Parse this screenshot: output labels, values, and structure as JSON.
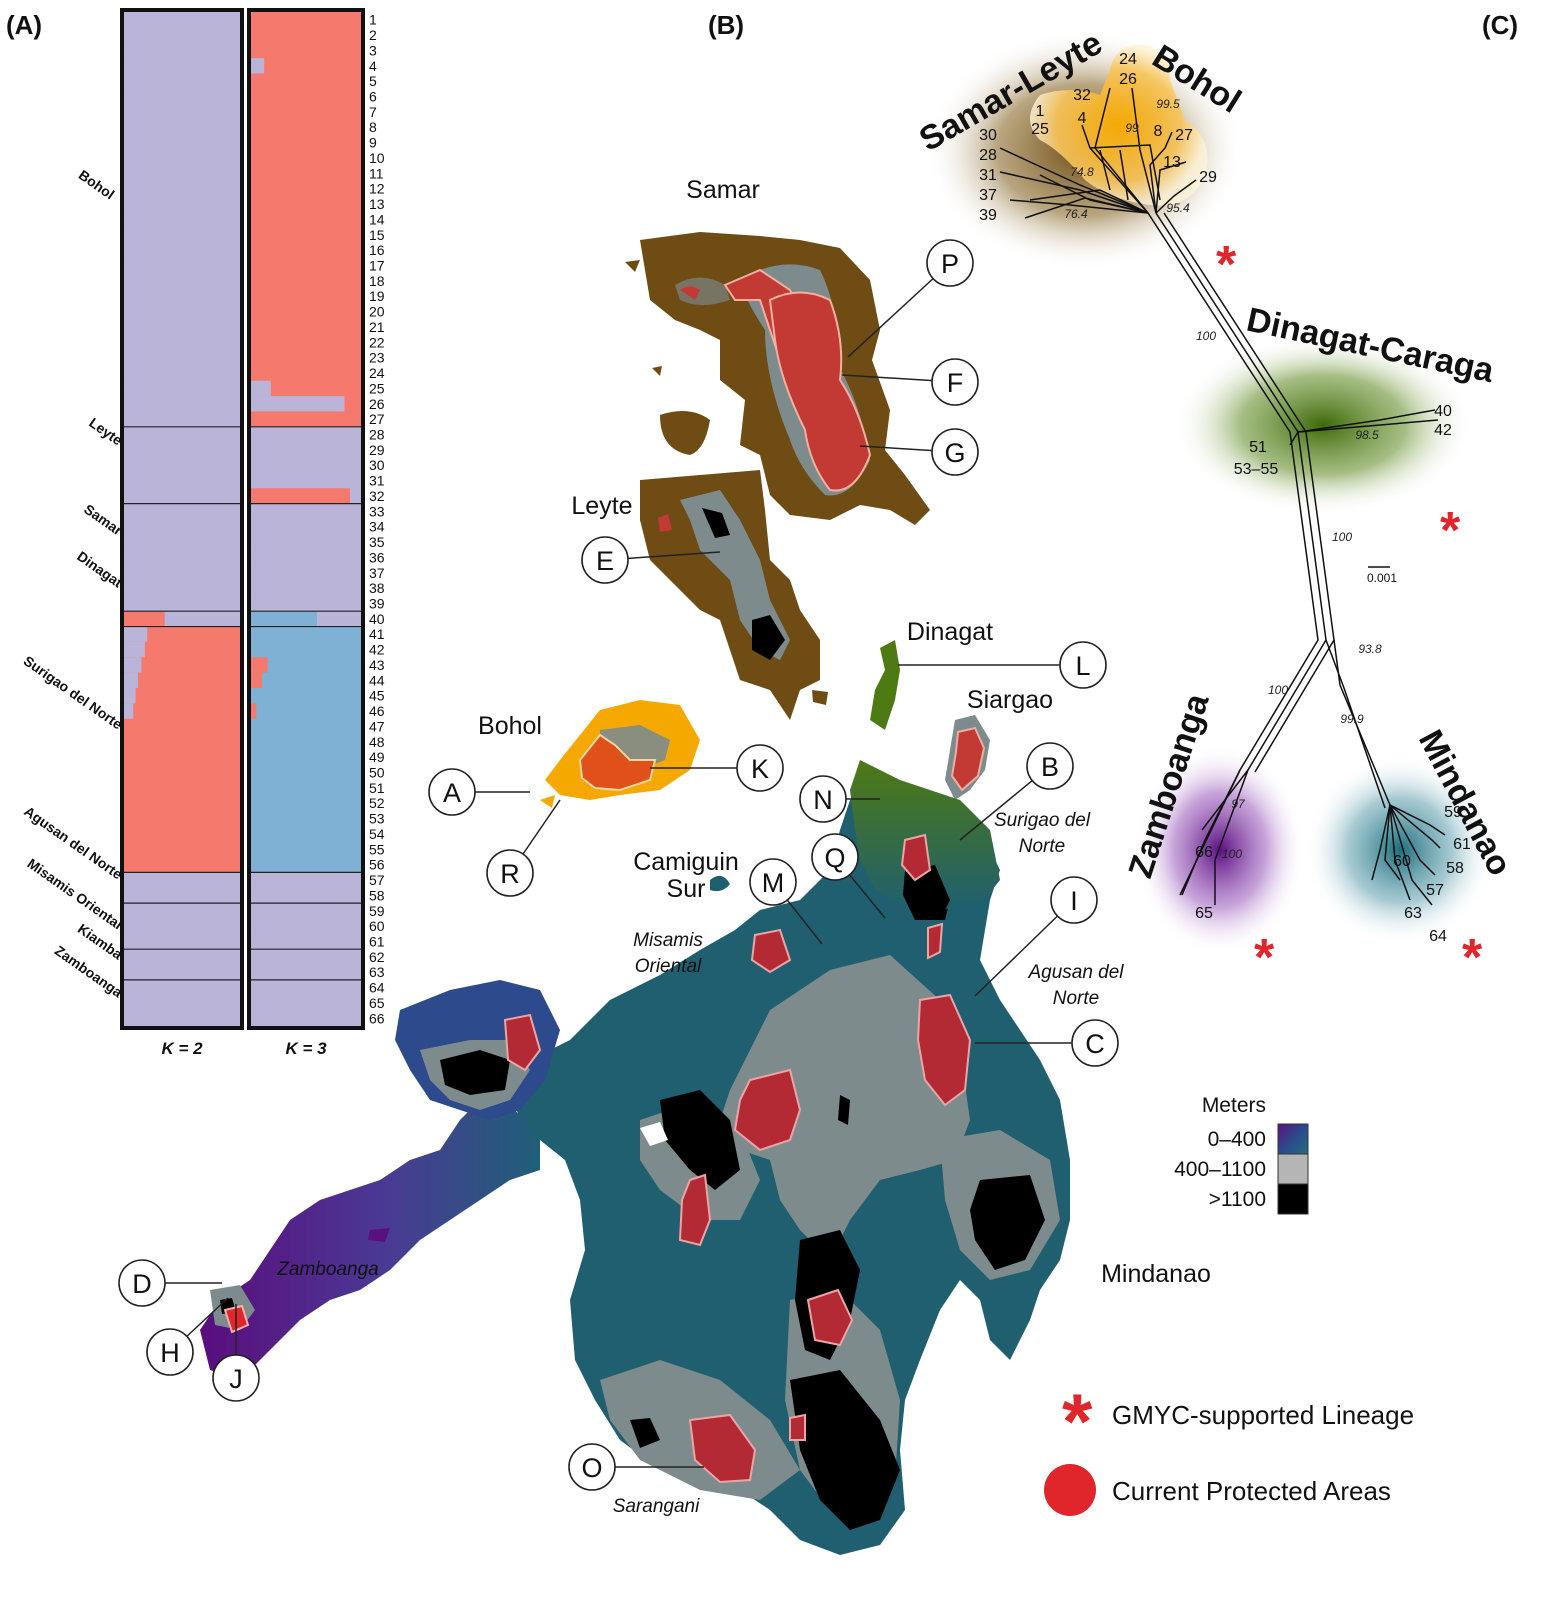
{
  "panels": {
    "a": "(A)",
    "b": "(B)",
    "c": "(C)"
  },
  "colors": {
    "lavender": "#b9b4d8",
    "salmon": "#f5796c",
    "blue": "#7fb1d4",
    "lowland": "#1f5f6f",
    "upland": "#7e8b8d",
    "peak": "#000000",
    "protected": "#e0262a",
    "samar": "#6e4c14",
    "bohol": "#f5a800",
    "dinagat": "#4e7a14",
    "zamboanga": "#5b1080",
    "mindanao": "#2e7b8a"
  },
  "structure": {
    "k2_label": "K = 2",
    "k3_label": "K = 3",
    "populations": [
      {
        "name": "Bohol",
        "start": 1,
        "end": 27
      },
      {
        "name": "Leyte",
        "start": 28,
        "end": 32
      },
      {
        "name": "Samar",
        "start": 33,
        "end": 39
      },
      {
        "name": "Dinagat",
        "start": 40,
        "end": 40
      },
      {
        "name": "Surigao del Norte",
        "start": 41,
        "end": 56
      },
      {
        "name": "Agusan del Norte",
        "start": 57,
        "end": 58
      },
      {
        "name": "Misamis Oriental",
        "start": 59,
        "end": 61
      },
      {
        "name": "Kiamba",
        "start": 62,
        "end": 63
      },
      {
        "name": "Zamboanga",
        "start": 64,
        "end": 66
      }
    ],
    "samples": [
      "1",
      "2",
      "3",
      "4",
      "5",
      "6",
      "7",
      "8",
      "9",
      "10",
      "11",
      "12",
      "13",
      "14",
      "15",
      "16",
      "17",
      "18",
      "19",
      "20",
      "21",
      "22",
      "23",
      "24",
      "25",
      "26",
      "27",
      "28",
      "29",
      "30",
      "31",
      "32",
      "33",
      "34",
      "35",
      "36",
      "37",
      "38",
      "39",
      "40",
      "41",
      "42",
      "43",
      "44",
      "45",
      "46",
      "47",
      "48",
      "49",
      "50",
      "51",
      "52",
      "53",
      "54",
      "55",
      "56",
      "57",
      "58",
      "59",
      "60",
      "61",
      "62",
      "63",
      "64",
      "65",
      "66"
    ]
  },
  "map": {
    "islands": [
      {
        "id": "samar",
        "label": "Samar"
      },
      {
        "id": "leyte",
        "label": "Leyte"
      },
      {
        "id": "bohol",
        "label": "Bohol"
      },
      {
        "id": "dinagat",
        "label": "Dinagat"
      },
      {
        "id": "siargao",
        "label": "Siargao"
      },
      {
        "id": "camiguin-1",
        "label": "Camiguin"
      },
      {
        "id": "camiguin-2",
        "label": "Sur"
      },
      {
        "id": "mindanao",
        "label": "Mindanao"
      }
    ],
    "regions": [
      {
        "id": "surigao-1",
        "label": "Surigao del"
      },
      {
        "id": "surigao-2",
        "label": "Norte"
      },
      {
        "id": "misamis-1",
        "label": "Misamis"
      },
      {
        "id": "misamis-2",
        "label": "Oriental"
      },
      {
        "id": "agusan-1",
        "label": "Agusan del"
      },
      {
        "id": "agusan-2",
        "label": "Norte"
      },
      {
        "id": "zamboanga",
        "label": "Zamboanga"
      },
      {
        "id": "sarangani",
        "label": "Sarangani"
      }
    ],
    "sites": [
      "A",
      "B",
      "C",
      "D",
      "E",
      "F",
      "G",
      "H",
      "I",
      "J",
      "K",
      "L",
      "M",
      "N",
      "O",
      "P",
      "Q",
      "R"
    ],
    "elevation_legend": {
      "title": "Meters",
      "low": "0–400",
      "mid": "400–1100",
      "high": ">1100"
    }
  },
  "tree": {
    "clades": [
      {
        "id": "samar-leyte",
        "label": "Samar-Leyte"
      },
      {
        "id": "bohol",
        "label": "Bohol"
      },
      {
        "id": "dinagat-caraga",
        "label": "Dinagat-Caraga"
      },
      {
        "id": "zamboanga",
        "label": "Zamboanga"
      },
      {
        "id": "mindanao",
        "label": "Mindanao"
      }
    ],
    "tips": [
      "24",
      "26",
      "32",
      "1",
      "25",
      "4",
      "8",
      "27",
      "13",
      "30",
      "28",
      "31",
      "37",
      "39",
      "29",
      "40",
      "42",
      "51",
      "53–55",
      "66",
      "65",
      "59",
      "61",
      "60",
      "58",
      "57",
      "63",
      "64"
    ],
    "supports": [
      "99.5",
      "99",
      "74.8",
      "76.4",
      "95.4",
      "100",
      "98.5",
      "100",
      "93.8",
      "100",
      "99.9",
      "97",
      "100"
    ],
    "scale": "0.001"
  },
  "legend": {
    "gmyc": "GMYC-supported Lineage",
    "protected": "Current Protected Areas"
  }
}
